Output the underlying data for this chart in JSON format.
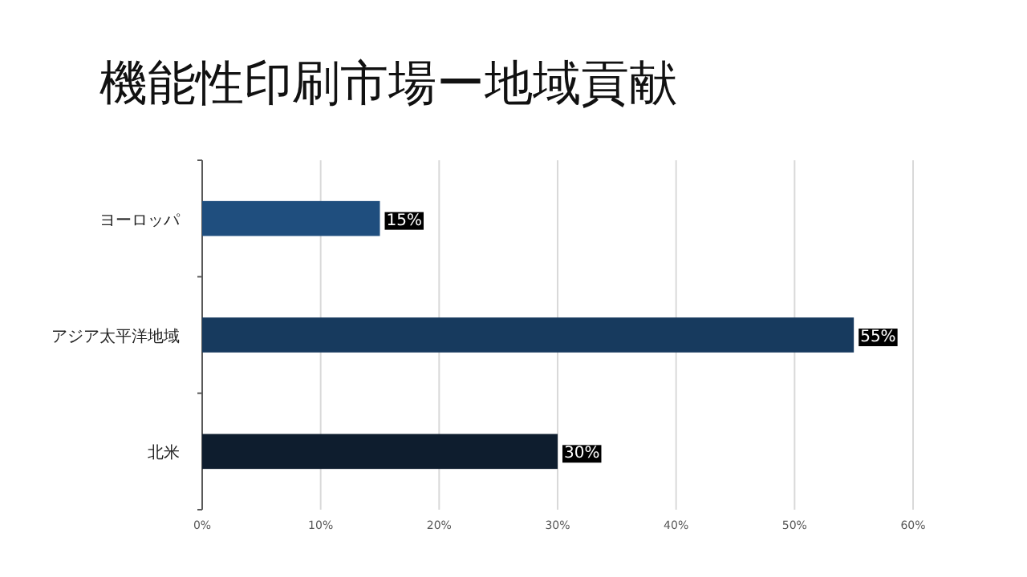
{
  "chart_data": {
    "type": "bar",
    "orientation": "horizontal",
    "title": "機能性印刷市場ー地域貢献",
    "categories": [
      "ヨーロッパ",
      "アジア太平洋地域",
      "北米"
    ],
    "values": [
      15,
      55,
      30
    ],
    "colors": [
      "#1f4e7e",
      "#173a5e",
      "#0e1d2e"
    ],
    "value_labels": [
      "15%",
      "55%",
      "30%"
    ],
    "xlim": [
      0,
      60
    ],
    "xticks": [
      {
        "value": 0,
        "label": "0%"
      },
      {
        "value": 10,
        "label": "10%"
      },
      {
        "value": 20,
        "label": "20%"
      },
      {
        "value": 30,
        "label": "30%"
      },
      {
        "value": 40,
        "label": "40%"
      },
      {
        "value": 50,
        "label": "50%"
      },
      {
        "value": 60,
        "label": "60%"
      }
    ],
    "grid": "x"
  }
}
